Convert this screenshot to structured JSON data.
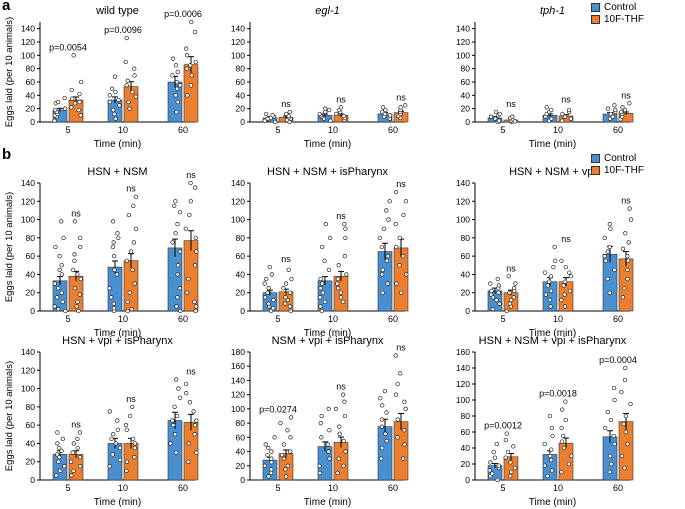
{
  "panel_letters": {
    "a": "a",
    "b": "b"
  },
  "legend": {
    "control": "Control",
    "treat": "10F-THF",
    "colors": {
      "control": "#4a8fd0",
      "treat": "#ec7e30"
    }
  },
  "chart_data": [
    {
      "type": "bar",
      "title": "wild type",
      "title_italic": false,
      "categories": [
        "5",
        "10",
        "60"
      ],
      "xlabel": "Time (min)",
      "ylabel": "Eggs laid (per 10 animals)",
      "ylim": [
        0,
        150
      ],
      "yticks": [
        0,
        20,
        40,
        60,
        80,
        100,
        120,
        140
      ],
      "series": [
        {
          "name": "Control",
          "values": [
            18,
            33,
            60
          ]
        },
        {
          "name": "10F-THF",
          "values": [
            33,
            53,
            86
          ]
        }
      ],
      "annotations": [
        "p=0.0054",
        "p=0.0096",
        "p=0.0006"
      ],
      "points": {
        "Control": [
          [
            2,
            8,
            10,
            12,
            15,
            18,
            20,
            28,
            30,
            36
          ],
          [
            5,
            12,
            18,
            25,
            30,
            33,
            40,
            45,
            50,
            68
          ],
          [
            15,
            30,
            40,
            50,
            55,
            60,
            70,
            75,
            85,
            95
          ]
        ],
        "10F-THF": [
          [
            10,
            18,
            22,
            28,
            30,
            35,
            42,
            48,
            60,
            100
          ],
          [
            20,
            30,
            38,
            45,
            55,
            62,
            70,
            80,
            90,
            126
          ],
          [
            40,
            55,
            70,
            80,
            85,
            90,
            100,
            110,
            135,
            150
          ]
        ]
      }
    },
    {
      "type": "bar",
      "title": "egl-1",
      "title_italic": true,
      "categories": [
        "5",
        "10",
        "60"
      ],
      "xlabel": "Time (min)",
      "ylabel": "",
      "ylim": [
        0,
        150
      ],
      "yticks": [
        0,
        20,
        40,
        60,
        80,
        100,
        120,
        140
      ],
      "series": [
        {
          "name": "Control",
          "values": [
            6,
            10,
            12
          ]
        },
        {
          "name": "10F-THF",
          "values": [
            7,
            10,
            14
          ]
        }
      ],
      "annotations": [
        "ns",
        "ns",
        "ns"
      ],
      "points": {
        "Control": [
          [
            0,
            2,
            4,
            5,
            6,
            8,
            10,
            12
          ],
          [
            2,
            5,
            8,
            10,
            12,
            15,
            18,
            20
          ],
          [
            5,
            8,
            10,
            12,
            15,
            18,
            22
          ]
        ],
        "10F-THF": [
          [
            0,
            3,
            5,
            7,
            9,
            12,
            15
          ],
          [
            3,
            6,
            9,
            12,
            15,
            18,
            22
          ],
          [
            6,
            9,
            12,
            15,
            18,
            22,
            25
          ]
        ]
      }
    },
    {
      "type": "bar",
      "title": "tph-1",
      "title_italic": true,
      "categories": [
        "5",
        "10",
        "60"
      ],
      "xlabel": "Time (min)",
      "ylabel": "",
      "ylim": [
        0,
        150
      ],
      "yticks": [
        0,
        20,
        40,
        60,
        80,
        100,
        120,
        140
      ],
      "series": [
        {
          "name": "Control",
          "values": [
            6,
            10,
            12
          ]
        },
        {
          "name": "10F-THF",
          "values": [
            3,
            9,
            13
          ]
        }
      ],
      "annotations": [
        "ns",
        "ns",
        "ns"
      ],
      "points": {
        "Control": [
          [
            0,
            2,
            5,
            8,
            10,
            12,
            15
          ],
          [
            2,
            5,
            8,
            12,
            15,
            18,
            22
          ],
          [
            5,
            8,
            12,
            15,
            18,
            20,
            25
          ]
        ],
        "10F-THF": [
          [
            0,
            1,
            2,
            4,
            6,
            8
          ],
          [
            2,
            5,
            8,
            12,
            15,
            18
          ],
          [
            4,
            8,
            12,
            15,
            18,
            22,
            28
          ]
        ]
      }
    },
    {
      "type": "bar",
      "title": "HSN + NSM",
      "categories": [
        "5",
        "10",
        "60"
      ],
      "xlabel": "Time (min)",
      "ylabel": "Eggs laid (per 10 animals)",
      "ylim": [
        0,
        140
      ],
      "yticks": [
        0,
        20,
        40,
        60,
        80,
        100,
        120,
        140
      ],
      "series": [
        {
          "name": "Control",
          "values": [
            33,
            48,
            69
          ]
        },
        {
          "name": "10F-THF",
          "values": [
            38,
            55,
            77
          ]
        }
      ],
      "annotations": [
        "ns",
        "ns",
        "ns"
      ],
      "points": {
        "Control": [
          [
            0,
            2,
            5,
            10,
            15,
            20,
            25,
            30,
            40,
            45,
            50,
            60,
            70,
            80,
            98
          ],
          [
            0,
            3,
            8,
            15,
            25,
            40,
            45,
            60,
            70,
            75,
            80,
            85,
            98
          ],
          [
            0,
            5,
            15,
            25,
            40,
            50,
            65,
            75,
            85,
            95,
            108,
            115,
            120
          ]
        ],
        "10F-THF": [
          [
            0,
            5,
            10,
            18,
            25,
            35,
            40,
            45,
            55,
            62,
            70,
            80,
            98
          ],
          [
            0,
            2,
            10,
            20,
            30,
            45,
            55,
            65,
            75,
            90,
            105,
            115,
            125
          ],
          [
            0,
            5,
            10,
            20,
            35,
            50,
            65,
            80,
            90,
            105,
            120,
            135,
            140
          ]
        ]
      }
    },
    {
      "type": "bar",
      "title": "HSN + NSM + isPharynx",
      "categories": [
        "5",
        "10",
        "60"
      ],
      "xlabel": "Time (min)",
      "ylabel": "",
      "ylim": [
        0,
        140
      ],
      "yticks": [
        0,
        20,
        40,
        60,
        80,
        100,
        120,
        140
      ],
      "series": [
        {
          "name": "Control",
          "values": [
            20,
            33,
            65
          ]
        },
        {
          "name": "10F-THF",
          "values": [
            21,
            38,
            69
          ]
        }
      ],
      "annotations": [
        "ns",
        "ns",
        "ns"
      ],
      "points": {
        "Control": [
          [
            0,
            3,
            5,
            8,
            12,
            15,
            20,
            25,
            30,
            35,
            40,
            48
          ],
          [
            0,
            5,
            10,
            15,
            20,
            25,
            30,
            35,
            45,
            55,
            70,
            80,
            95
          ],
          [
            20,
            30,
            40,
            45,
            55,
            60,
            70,
            80,
            90,
            100,
            110,
            120
          ]
        ],
        "10F-THF": [
          [
            0,
            5,
            8,
            12,
            15,
            20,
            25,
            30,
            35,
            45
          ],
          [
            10,
            15,
            20,
            25,
            30,
            35,
            40,
            50,
            60,
            80,
            90,
            95
          ],
          [
            20,
            30,
            40,
            50,
            60,
            70,
            80,
            95,
            105,
            120,
            130
          ]
        ]
      }
    },
    {
      "type": "bar",
      "title": "HSN + NSM + vpi",
      "categories": [
        "5",
        "10",
        "60"
      ],
      "xlabel": "Time (min)",
      "ylabel": "",
      "ylim": [
        0,
        140
      ],
      "yticks": [
        0,
        20,
        40,
        60,
        80,
        100,
        120,
        140
      ],
      "series": [
        {
          "name": "Control",
          "values": [
            22,
            32,
            62
          ]
        },
        {
          "name": "10F-THF",
          "values": [
            20,
            32,
            57
          ]
        }
      ],
      "annotations": [
        "ns",
        "ns",
        "ns"
      ],
      "points": {
        "Control": [
          [
            2,
            8,
            12,
            15,
            18,
            20,
            22,
            25,
            28,
            30,
            35
          ],
          [
            5,
            12,
            18,
            22,
            28,
            32,
            38,
            42,
            48,
            55,
            70
          ],
          [
            20,
            35,
            45,
            55,
            60,
            65,
            70,
            80,
            90,
            95
          ]
        ],
        "10F-THF": [
          [
            0,
            5,
            8,
            12,
            15,
            20,
            22,
            25,
            30,
            38
          ],
          [
            5,
            12,
            18,
            22,
            28,
            32,
            38,
            42,
            48,
            55
          ],
          [
            15,
            25,
            35,
            45,
            55,
            60,
            68,
            75,
            85,
            100,
            112
          ]
        ]
      }
    },
    {
      "type": "bar",
      "title": "HSN + vpi + isPharynx",
      "categories": [
        "5",
        "10",
        "60"
      ],
      "xlabel": "Time (min)",
      "ylabel": "Eggs laid (per 10 animals)",
      "ylim": [
        0,
        140
      ],
      "yticks": [
        0,
        20,
        40,
        60,
        80,
        100,
        120,
        140
      ],
      "series": [
        {
          "name": "Control",
          "values": [
            28,
            40,
            65
          ]
        },
        {
          "name": "10F-THF",
          "values": [
            28,
            40,
            63
          ]
        }
      ],
      "annotations": [
        "ns",
        "ns",
        "ns"
      ],
      "points": {
        "Control": [
          [
            5,
            10,
            15,
            20,
            25,
            28,
            32,
            35,
            40,
            45,
            52
          ],
          [
            15,
            22,
            28,
            35,
            40,
            45,
            50,
            55,
            65,
            75
          ],
          [
            30,
            40,
            50,
            60,
            65,
            70,
            80,
            90,
            100,
            110
          ]
        ],
        "10F-THF": [
          [
            5,
            10,
            15,
            20,
            25,
            30,
            35,
            40,
            45,
            52
          ],
          [
            10,
            20,
            25,
            35,
            40,
            45,
            55,
            60,
            70,
            80
          ],
          [
            20,
            30,
            40,
            50,
            60,
            65,
            75,
            85,
            95,
            105
          ]
        ]
      }
    },
    {
      "type": "bar",
      "title": "NSM + vpi + isPharynx",
      "categories": [
        "5",
        "10",
        "60"
      ],
      "xlabel": "Time (min)",
      "ylabel": "",
      "ylim": [
        0,
        180
      ],
      "yticks": [
        0,
        20,
        40,
        60,
        80,
        100,
        120,
        140,
        160,
        180
      ],
      "series": [
        {
          "name": "Control",
          "values": [
            28,
            47,
            75
          ]
        },
        {
          "name": "10F-THF",
          "values": [
            37,
            53,
            82
          ]
        }
      ],
      "annotations": [
        "p=0.0274",
        "ns",
        "ns"
      ],
      "points": {
        "Control": [
          [
            5,
            10,
            15,
            20,
            25,
            30,
            35,
            40,
            45,
            50,
            60
          ],
          [
            10,
            20,
            30,
            40,
            50,
            60,
            70,
            80,
            90,
            100
          ],
          [
            30,
            45,
            55,
            65,
            75,
            85,
            95,
            105,
            115,
            125
          ]
        ],
        "10F-THF": [
          [
            5,
            15,
            20,
            30,
            35,
            40,
            50,
            60,
            70,
            80,
            88
          ],
          [
            10,
            20,
            30,
            40,
            55,
            65,
            75,
            90,
            100,
            110,
            120
          ],
          [
            30,
            50,
            60,
            70,
            85,
            100,
            110,
            120,
            135,
            150,
            175
          ]
        ]
      }
    },
    {
      "type": "bar",
      "title": "HSN + NSM + vpi + isPharynx",
      "categories": [
        "5",
        "10",
        "60"
      ],
      "xlabel": "Time (min)",
      "ylabel": "",
      "ylim": [
        0,
        160
      ],
      "yticks": [
        0,
        20,
        40,
        60,
        80,
        100,
        120,
        140,
        160
      ],
      "series": [
        {
          "name": "Control",
          "values": [
            18,
            32,
            54
          ]
        },
        {
          "name": "10F-THF",
          "values": [
            29,
            46,
            73
          ]
        }
      ],
      "annotations": [
        "p=0.0012",
        "p=0.0018",
        "p=0.0004"
      ],
      "points": {
        "Control": [
          [
            0,
            5,
            8,
            12,
            15,
            18,
            22,
            28,
            35,
            45
          ],
          [
            5,
            12,
            18,
            25,
            30,
            38,
            45,
            55,
            65,
            80
          ],
          [
            10,
            20,
            30,
            45,
            55,
            65,
            75,
            85,
            100,
            115
          ]
        ],
        "10F-THF": [
          [
            5,
            10,
            15,
            22,
            28,
            35,
            42,
            50,
            58
          ],
          [
            10,
            20,
            30,
            40,
            48,
            55,
            65,
            75,
            88,
            98
          ],
          [
            15,
            30,
            45,
            60,
            70,
            80,
            95,
            110,
            125,
            140
          ]
        ]
      }
    }
  ]
}
